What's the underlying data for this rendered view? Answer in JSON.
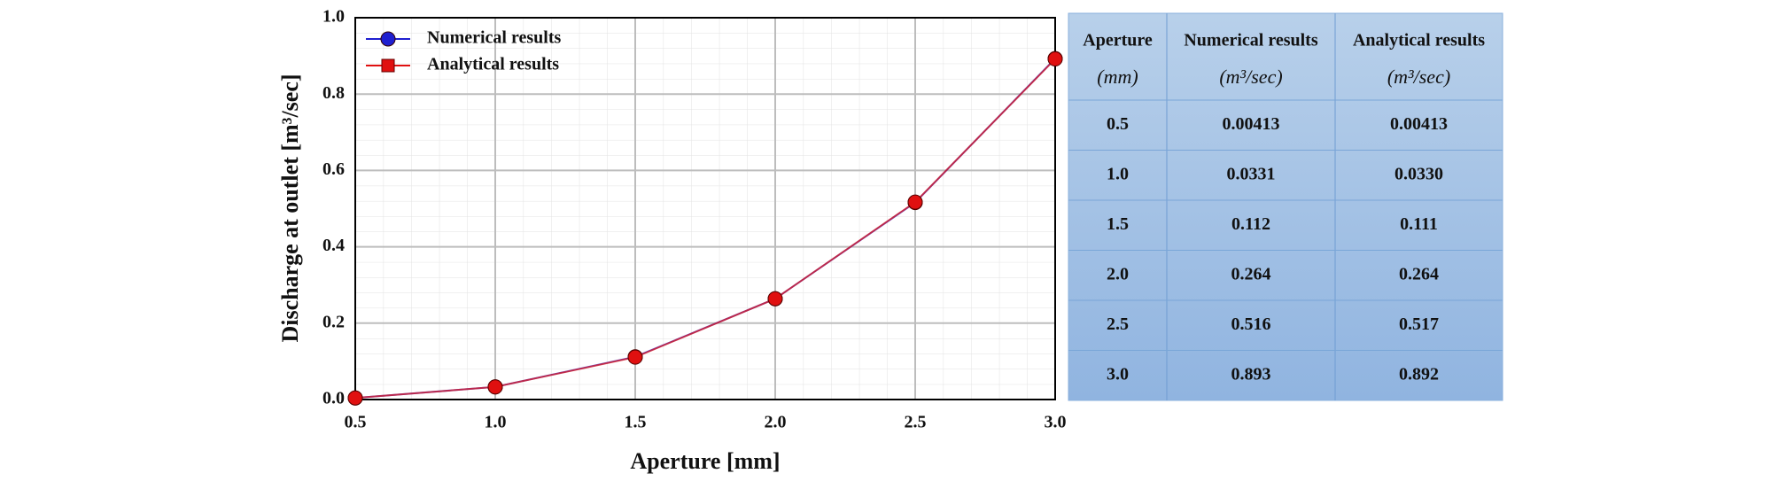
{
  "chart_data": {
    "type": "line",
    "xlabel": "Aperture [mm]",
    "ylabel": "Discharge at outlet [m³/sec]",
    "x": [
      0.5,
      1.0,
      1.5,
      2.0,
      2.5,
      3.0
    ],
    "series": [
      {
        "name": "Numerical results",
        "color": "#1f1fd0",
        "marker": "circle",
        "values": [
          0.00413,
          0.0331,
          0.112,
          0.264,
          0.516,
          0.893
        ]
      },
      {
        "name": "Analytical results",
        "color": "#e01010",
        "marker": "square",
        "values": [
          0.00413,
          0.033,
          0.111,
          0.264,
          0.517,
          0.892
        ]
      }
    ],
    "xlim": [
      0.5,
      3.0
    ],
    "xticks": [
      0.5,
      {
        "value": 1,
        "label": "1.0"
      },
      1.5,
      {
        "value": 2,
        "label": "2.0"
      },
      2.5,
      {
        "value": 3,
        "label": "3.0"
      }
    ],
    "ylim": [
      0,
      1
    ],
    "yticks": [
      {
        "value": 0,
        "label": "0.0"
      },
      0.2,
      0.4,
      0.6,
      0.8,
      {
        "value": 1,
        "label": "1.0"
      }
    ],
    "grid": true,
    "legend": "upper left"
  },
  "table": {
    "header": [
      [
        "Aperture",
        "(mm)"
      ],
      [
        "Numerical results",
        "(m³/sec)"
      ],
      [
        "Analytical results",
        "(m³/sec)"
      ]
    ],
    "rows": [
      [
        "0.5",
        "0.00413",
        "0.00413"
      ],
      [
        "1.0",
        "0.0331",
        "0.0330"
      ],
      [
        "1.5",
        "0.112",
        "0.111"
      ],
      [
        "2.0",
        "0.264",
        "0.264"
      ],
      [
        "2.5",
        "0.516",
        "0.517"
      ],
      [
        "3.0",
        "0.893",
        "0.892"
      ]
    ]
  }
}
